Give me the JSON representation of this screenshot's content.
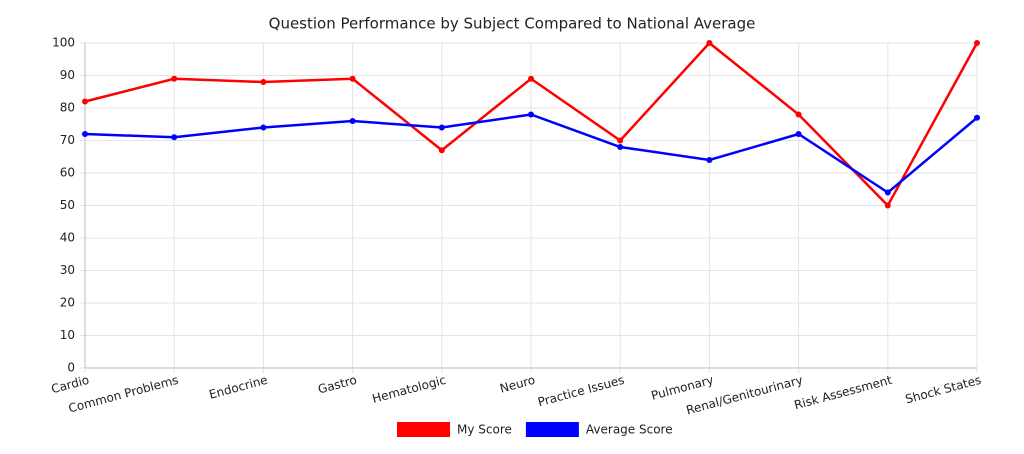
{
  "chart_data": {
    "type": "line",
    "title": "Question Performance by Subject Compared to National Average",
    "categories": [
      "Cardio",
      "Common Problems",
      "Endocrine",
      "Gastro",
      "Hematologic",
      "Neuro",
      "Practice Issues",
      "Pulmonary",
      "Renal/Genitourinary",
      "Risk Assessment",
      "Shock States"
    ],
    "series": [
      {
        "name": "My Score",
        "color": "#ff0000",
        "values": [
          82,
          89,
          88,
          89,
          67,
          89,
          70,
          100,
          78,
          50,
          100
        ]
      },
      {
        "name": "Average Score",
        "color": "#0000ff",
        "values": [
          72,
          71,
          74,
          76,
          74,
          78,
          68,
          64,
          72,
          54,
          77
        ]
      }
    ],
    "ylim": [
      0,
      100
    ],
    "yticks": [
      0,
      10,
      20,
      30,
      40,
      50,
      60,
      70,
      80,
      90,
      100
    ],
    "grid": true,
    "legend": "bottom"
  }
}
